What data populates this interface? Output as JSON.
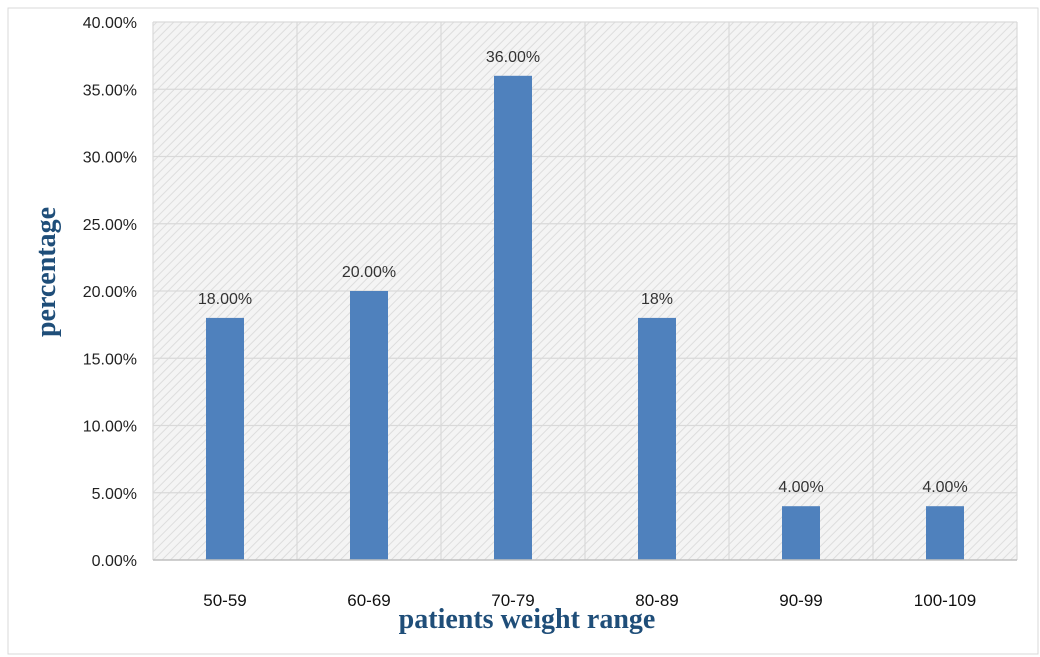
{
  "chart_data": {
    "type": "bar",
    "title": "",
    "xlabel": "patients weight range",
    "ylabel": "percentage",
    "categories": [
      "50-59",
      "60-69",
      "70-79",
      "80-89",
      "90-99",
      "100-109"
    ],
    "values": [
      18,
      20,
      36,
      18,
      4,
      4
    ],
    "data_labels": [
      "18.00%",
      "20.00%",
      "36.00%",
      "18%",
      "4.00%",
      "4.00%"
    ],
    "ylim": [
      0,
      40
    ],
    "yticks": [
      0,
      5,
      10,
      15,
      20,
      25,
      30,
      35,
      40
    ],
    "ytick_labels": [
      "0.00%",
      "5.00%",
      "10.00%",
      "15.00%",
      "20.00%",
      "25.00%",
      "30.00%",
      "35.00%",
      "40.00%"
    ],
    "grid": true,
    "legend": "none",
    "colors": {
      "bar": "#4f81bd",
      "axis_title": "#1f4e79",
      "grid": "#d9d9d9",
      "plot_background": "#f2f2f2"
    }
  }
}
